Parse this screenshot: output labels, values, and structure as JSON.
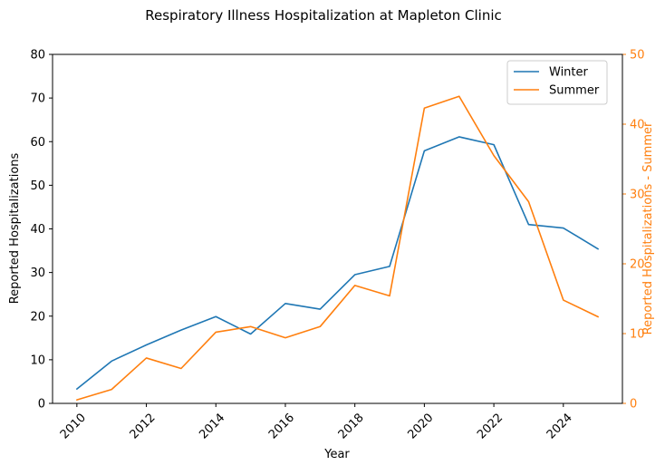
{
  "chart_data": {
    "type": "line",
    "title": "Respiratory Illness Hospitalization at Mapleton Clinic",
    "xlabel": "Year",
    "ylabel_left": "Reported Hospitalizations",
    "ylabel_right": "Reported Hospitalizations - Summer",
    "xlim": [
      2009.3,
      2025.7
    ],
    "ylim_left": [
      0,
      80
    ],
    "ylim_right": [
      0,
      50
    ],
    "x_ticks": [
      "2010",
      "2012",
      "2014",
      "2016",
      "2018",
      "2020",
      "2022",
      "2024"
    ],
    "y_ticks_left": [
      "0",
      "10",
      "20",
      "30",
      "40",
      "50",
      "60",
      "70",
      "80"
    ],
    "y_ticks_right": [
      "0",
      "10",
      "20",
      "30",
      "40",
      "50"
    ],
    "legend_position": "top-right",
    "grid": false,
    "x": [
      2010,
      2011,
      2012,
      2013,
      2014,
      2015,
      2016,
      2017,
      2018,
      2019,
      2020,
      2021,
      2022,
      2023,
      2024,
      2025
    ],
    "series": [
      {
        "name": "Winter",
        "axis": "left",
        "color": "#1f77b4",
        "values": [
          3.3,
          9.7,
          13.4,
          16.8,
          19.9,
          15.9,
          22.9,
          21.6,
          29.5,
          31.4,
          57.9,
          61.1,
          59.3,
          41.0,
          40.2,
          35.4
        ]
      },
      {
        "name": "Summer",
        "axis": "right",
        "color": "#ff7f0e",
        "values": [
          0.5,
          2.0,
          6.5,
          5.0,
          10.2,
          11.0,
          9.4,
          11.0,
          16.9,
          15.4,
          42.3,
          44.0,
          35.5,
          28.9,
          14.8,
          12.4
        ]
      }
    ]
  }
}
